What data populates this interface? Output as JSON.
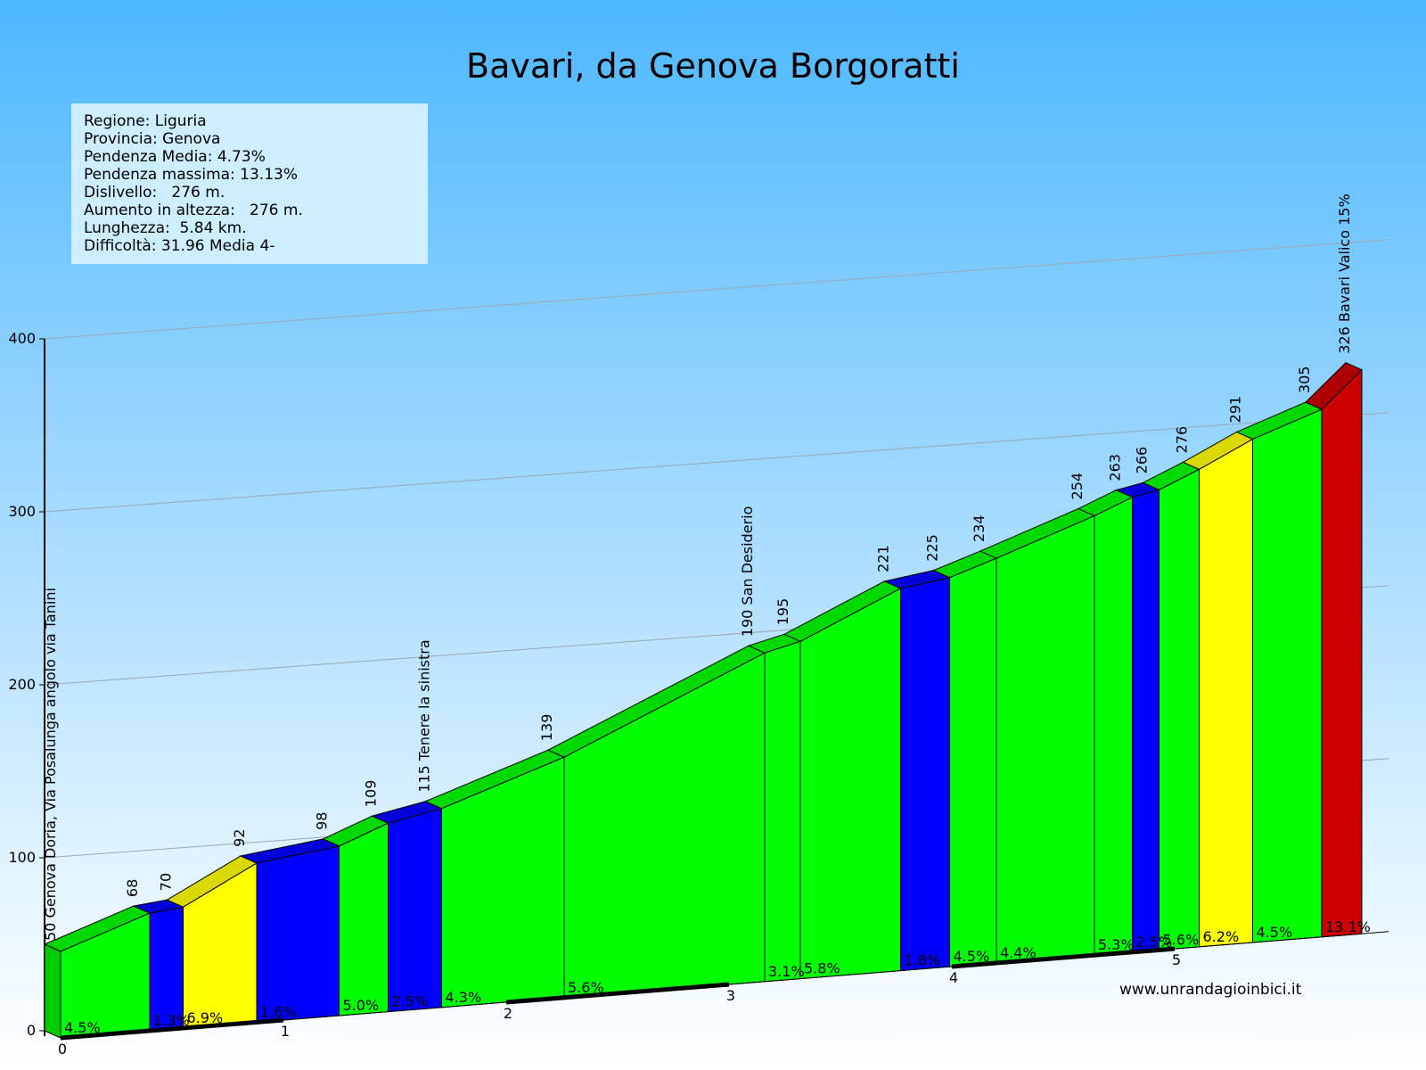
{
  "title": "Bavari, da Genova Borgoratti",
  "info": [
    "Regione: Liguria",
    "Provincia: Genova",
    "Pendenza Media: 4.73%",
    "Pendenza massima: 13.13%",
    "Dislivello:   276 m.",
    "Aumento in altezza:   276 m.",
    "Lunghezza:  5.84 km.",
    "Difficoltà: 31.96 Media 4-"
  ],
  "website": "www.unrandagioinbici.it",
  "colors": {
    "green": "#00ff00",
    "blue": "#0000ff",
    "yellow": "#ffff00",
    "red": "#cc0000"
  },
  "chart_data": {
    "type": "area",
    "title": "Bavari, da Genova Borgoratti",
    "xlabel": "",
    "ylabel": "",
    "xlim": [
      0,
      5.84
    ],
    "ylim": [
      0,
      400
    ],
    "y_ticks": [
      0,
      100,
      200,
      300,
      400
    ],
    "x_ticks": [
      0,
      1,
      2,
      3,
      4,
      5
    ],
    "grid": true,
    "points": [
      {
        "x": 0.0,
        "y": 50,
        "label": "50 Genova Doria, Via Posalunga angolo via Tanini"
      },
      {
        "x": 0.4,
        "y": 68,
        "label": "68"
      },
      {
        "x": 0.55,
        "y": 70,
        "label": "70"
      },
      {
        "x": 0.88,
        "y": 92,
        "label": "92"
      },
      {
        "x": 1.25,
        "y": 98,
        "label": "98"
      },
      {
        "x": 1.47,
        "y": 109,
        "label": "109"
      },
      {
        "x": 1.71,
        "y": 115,
        "label": "115 Tenere la sinistra"
      },
      {
        "x": 2.26,
        "y": 139,
        "label": "139"
      },
      {
        "x": 3.16,
        "y": 190,
        "label": "190 San Desiderio"
      },
      {
        "x": 3.32,
        "y": 195,
        "label": "195"
      },
      {
        "x": 3.77,
        "y": 221,
        "label": "221"
      },
      {
        "x": 3.99,
        "y": 225,
        "label": "225"
      },
      {
        "x": 4.2,
        "y": 234,
        "label": "234"
      },
      {
        "x": 4.64,
        "y": 254,
        "label": "254"
      },
      {
        "x": 4.81,
        "y": 263,
        "label": "263"
      },
      {
        "x": 4.93,
        "y": 266,
        "label": "266"
      },
      {
        "x": 5.11,
        "y": 276,
        "label": "276"
      },
      {
        "x": 5.35,
        "y": 291,
        "label": "291"
      },
      {
        "x": 5.66,
        "y": 305,
        "label": "305"
      },
      {
        "x": 5.84,
        "y": 326,
        "label": "326 Bavari Valico 15%"
      }
    ],
    "segments": [
      {
        "grade": "4.5%",
        "color": "green"
      },
      {
        "grade": "1.3%",
        "color": "blue"
      },
      {
        "grade": "6.9%",
        "color": "yellow"
      },
      {
        "grade": "1.6%",
        "color": "blue"
      },
      {
        "grade": "5.0%",
        "color": "green"
      },
      {
        "grade": "2.5%",
        "color": "blue"
      },
      {
        "grade": "4.3%",
        "color": "green"
      },
      {
        "grade": "5.6%",
        "color": "green"
      },
      {
        "grade": "3.1%",
        "color": "green"
      },
      {
        "grade": "5.8%",
        "color": "green"
      },
      {
        "grade": "1.8%",
        "color": "blue"
      },
      {
        "grade": "4.5%",
        "color": "green"
      },
      {
        "grade": "4.4%",
        "color": "green"
      },
      {
        "grade": "5.3%",
        "color": "green"
      },
      {
        "grade": "2.5%",
        "color": "blue"
      },
      {
        "grade": "5.6%",
        "color": "green"
      },
      {
        "grade": "6.2%",
        "color": "yellow"
      },
      {
        "grade": "4.5%",
        "color": "green"
      },
      {
        "grade": "13.1%",
        "color": "red"
      }
    ]
  }
}
